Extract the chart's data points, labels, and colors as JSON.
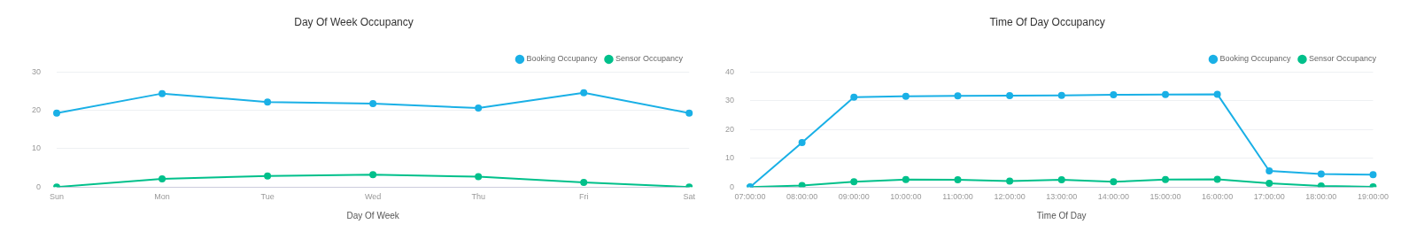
{
  "chart_data": [
    {
      "type": "line",
      "title": "Day Of Week Occupancy",
      "xlabel": "Day Of Week",
      "categories": [
        "Sun",
        "Mon",
        "Tue",
        "Wed",
        "Thu",
        "Fri",
        "Sat"
      ],
      "series": [
        {
          "name": "Booking Occupancy",
          "color": "#1ab0e6",
          "values": [
            19.3,
            24.4,
            22.2,
            21.8,
            20.6,
            24.6,
            19.3
          ]
        },
        {
          "name": "Sensor Occupancy",
          "color": "#00c08b",
          "values": [
            0,
            2.1,
            2.9,
            3.2,
            2.7,
            1.2,
            0
          ]
        }
      ],
      "ylim": [
        0,
        30
      ],
      "yticks": [
        0,
        10,
        20,
        30
      ],
      "grid": "y",
      "legend": "top right",
      "marker": "circle"
    },
    {
      "type": "line",
      "title": "Time Of Day Occupancy",
      "xlabel": "Time Of Day",
      "categories": [
        "07:00:00",
        "08:00:00",
        "09:00:00",
        "10:00:00",
        "11:00:00",
        "12:00:00",
        "13:00:00",
        "14:00:00",
        "15:00:00",
        "16:00:00",
        "17:00:00",
        "18:00:00",
        "19:00:00"
      ],
      "series": [
        {
          "name": "Booking Occupancy",
          "color": "#1ab0e6",
          "values": [
            0,
            15.5,
            31.3,
            31.6,
            31.7,
            31.8,
            31.9,
            32.1,
            32.2,
            32.3,
            5.6,
            4.5,
            4.3
          ]
        },
        {
          "name": "Sensor Occupancy",
          "color": "#00c08b",
          "values": [
            0,
            0.5,
            1.8,
            2.6,
            2.5,
            2.1,
            2.5,
            1.8,
            2.6,
            2.7,
            1.3,
            0.4,
            0.1
          ]
        }
      ],
      "ylim": [
        0,
        40
      ],
      "yticks": [
        0,
        10,
        20,
        30,
        40
      ],
      "grid": "y",
      "legend": "top right",
      "marker": "circle"
    }
  ]
}
